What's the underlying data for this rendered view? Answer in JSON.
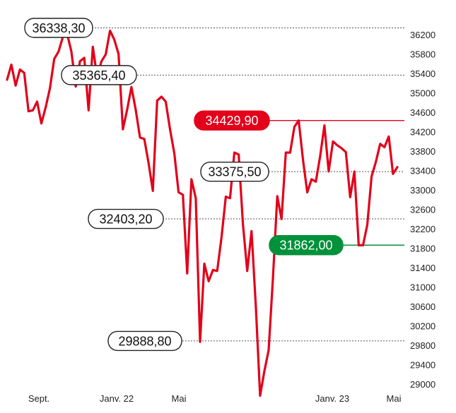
{
  "chart_data": {
    "type": "line",
    "title": "",
    "xlabel": "",
    "ylabel": "",
    "ylim": [
      28800,
      36500
    ],
    "y_ticks": [
      36200,
      35800,
      35400,
      35000,
      34600,
      34200,
      33800,
      33400,
      33000,
      32600,
      32200,
      31800,
      31400,
      31000,
      30600,
      30200,
      29800,
      29400,
      29000
    ],
    "x_ticks": [
      "Sept.",
      "Janv. 22",
      "Mai",
      "Janv. 23",
      "Mai"
    ],
    "grid": false,
    "colors": {
      "line": "#e2001a",
      "high": "#e2001a",
      "low": "#00913a",
      "ref": "#555555"
    },
    "annotations": [
      {
        "text": "36338,30",
        "value": 36338.3,
        "style": "outline"
      },
      {
        "text": "35365,40",
        "value": 35365.4,
        "style": "outline"
      },
      {
        "text": "34429,90",
        "value": 34429.9,
        "style": "red"
      },
      {
        "text": "33375,50",
        "value": 33375.5,
        "style": "outline"
      },
      {
        "text": "32403,20",
        "value": 32403.2,
        "style": "outline"
      },
      {
        "text": "31862,00",
        "value": 31862.0,
        "style": "green"
      },
      {
        "text": "29888,80",
        "value": 29888.8,
        "style": "outline"
      }
    ],
    "series": [
      {
        "values": [
          35270,
          35580,
          35150,
          35480,
          35410,
          34620,
          34640,
          34820,
          34370,
          34700,
          35100,
          35700,
          35850,
          36150,
          36220,
          35850,
          35130,
          35650,
          35720,
          34640,
          35950,
          35320,
          35650,
          35790,
          36280,
          36100,
          35800,
          34250,
          34650,
          35120,
          34650,
          34080,
          34050,
          33550,
          32980,
          34840,
          34920,
          34820,
          34250,
          33750,
          32950,
          32900,
          31280,
          33220,
          32830,
          29870,
          31480,
          31120,
          31350,
          31330,
          32020,
          32860,
          32830,
          33770,
          33730,
          32300,
          31330,
          32150,
          30620,
          28760,
          29270,
          29700,
          31190,
          32870,
          32400,
          33770,
          33770,
          34300,
          34430,
          33630,
          32950,
          33220,
          33170,
          33690,
          34330,
          33380,
          34000,
          33920,
          33860,
          33780,
          32850,
          33380,
          31860,
          31860,
          32280,
          33280,
          33580,
          33950,
          33880,
          34100,
          33330,
          33470
        ]
      }
    ]
  }
}
